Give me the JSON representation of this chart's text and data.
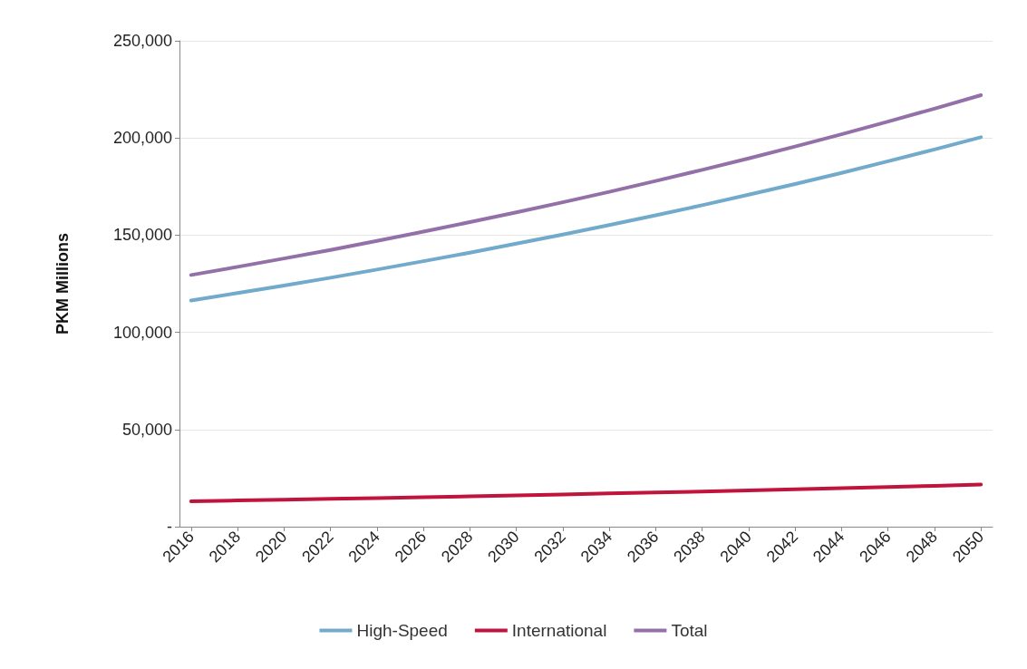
{
  "chart_data": {
    "type": "line",
    "ylabel": "PKM Millions",
    "x": [
      2016,
      2018,
      2020,
      2022,
      2024,
      2026,
      2028,
      2030,
      2032,
      2034,
      2036,
      2038,
      2040,
      2042,
      2044,
      2046,
      2048,
      2050
    ],
    "series": [
      {
        "name": "High-Speed",
        "color": "#72aacb",
        "values": [
          116400,
          120200,
          124100,
          128100,
          132300,
          136600,
          141000,
          145600,
          150300,
          155200,
          160200,
          165400,
          170800,
          176300,
          182000,
          188000,
          194100,
          200400
        ]
      },
      {
        "name": "International",
        "color": "#c0143c",
        "values": [
          13100,
          13500,
          13900,
          14300,
          14700,
          15200,
          15600,
          16100,
          16600,
          17100,
          17600,
          18100,
          18700,
          19200,
          19800,
          20400,
          21000,
          21700
        ]
      },
      {
        "name": "Total",
        "color": "#9370a8",
        "values": [
          129500,
          133700,
          138000,
          142400,
          147000,
          151800,
          156700,
          161700,
          166900,
          172300,
          177900,
          183600,
          189500,
          195600,
          201900,
          208400,
          215100,
          222000
        ]
      }
    ],
    "xlim": [
      2015.5,
      2050.5
    ],
    "xticks": [
      2016,
      2018,
      2020,
      2022,
      2024,
      2026,
      2028,
      2030,
      2032,
      2034,
      2036,
      2038,
      2040,
      2042,
      2044,
      2046,
      2048,
      2050
    ],
    "ylim": [
      0,
      250000
    ],
    "yticks": [
      {
        "value": 0,
        "label": "-"
      },
      {
        "value": 50000,
        "label": "50,000"
      },
      {
        "value": 100000,
        "label": "100,000"
      },
      {
        "value": 150000,
        "label": "150,000"
      },
      {
        "value": 200000,
        "label": "200,000"
      },
      {
        "value": 250000,
        "label": "250,000"
      }
    ],
    "grid": "y",
    "legend": "bottom",
    "marker": "none",
    "line_style": "solid"
  }
}
